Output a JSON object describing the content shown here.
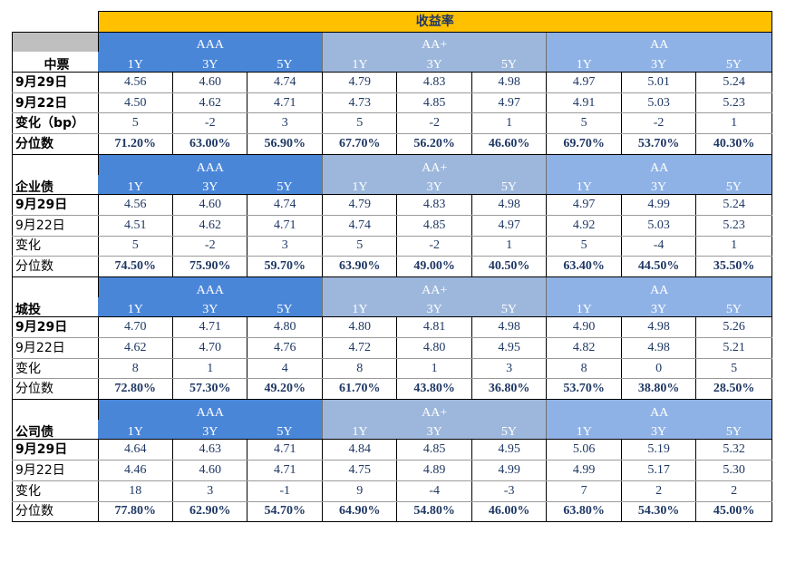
{
  "title": "收益率",
  "sections": [
    {
      "name": "中票",
      "groups": [
        "AAA",
        "AA+",
        "AA"
      ],
      "tenors": [
        "1Y",
        "3Y",
        "5Y",
        "1Y",
        "3Y",
        "5Y",
        "1Y",
        "3Y",
        "5Y"
      ],
      "rows": [
        {
          "label": "9月29日",
          "values": [
            "4.56",
            "4.60",
            "4.74",
            "4.79",
            "4.83",
            "4.98",
            "4.97",
            "5.01",
            "5.24"
          ]
        },
        {
          "label": "9月22日",
          "values": [
            "4.50",
            "4.62",
            "4.71",
            "4.73",
            "4.85",
            "4.97",
            "4.91",
            "5.03",
            "5.23"
          ]
        },
        {
          "label": "变化（bp）",
          "values": [
            "5",
            "-2",
            "3",
            "5",
            "-2",
            "1",
            "5",
            "-2",
            "1"
          ]
        },
        {
          "label": "分位数",
          "values": [
            "71.20%",
            "63.00%",
            "56.90%",
            "67.70%",
            "56.20%",
            "46.60%",
            "69.70%",
            "53.70%",
            "40.30%"
          ]
        }
      ]
    },
    {
      "name": "企业债",
      "groups": [
        "AAA",
        "AA+",
        "AA"
      ],
      "tenors": [
        "1Y",
        "3Y",
        "5Y",
        "1Y",
        "3Y",
        "5Y",
        "1Y",
        "3Y",
        "5Y"
      ],
      "rows": [
        {
          "label": "9月29日",
          "values": [
            "4.56",
            "4.60",
            "4.74",
            "4.79",
            "4.83",
            "4.98",
            "4.97",
            "4.99",
            "5.24"
          ]
        },
        {
          "label": "9月22日",
          "values": [
            "4.51",
            "4.62",
            "4.71",
            "4.74",
            "4.85",
            "4.97",
            "4.92",
            "5.03",
            "5.23"
          ]
        },
        {
          "label": "变化",
          "values": [
            "5",
            "-2",
            "3",
            "5",
            "-2",
            "1",
            "5",
            "-4",
            "1"
          ]
        },
        {
          "label": "分位数",
          "values": [
            "74.50%",
            "75.90%",
            "59.70%",
            "63.90%",
            "49.00%",
            "40.50%",
            "63.40%",
            "44.50%",
            "35.50%"
          ]
        }
      ]
    },
    {
      "name": "城投",
      "groups": [
        "AAA",
        "AA+",
        "AA"
      ],
      "tenors": [
        "1Y",
        "3Y",
        "5Y",
        "1Y",
        "3Y",
        "5Y",
        "1Y",
        "3Y",
        "5Y"
      ],
      "rows": [
        {
          "label": "9月29日",
          "values": [
            "4.70",
            "4.71",
            "4.80",
            "4.80",
            "4.81",
            "4.98",
            "4.90",
            "4.98",
            "5.26"
          ]
        },
        {
          "label": "9月22日",
          "values": [
            "4.62",
            "4.70",
            "4.76",
            "4.72",
            "4.80",
            "4.95",
            "4.82",
            "4.98",
            "5.21"
          ]
        },
        {
          "label": "变化",
          "values": [
            "8",
            "1",
            "4",
            "8",
            "1",
            "3",
            "8",
            "0",
            "5"
          ]
        },
        {
          "label": "分位数",
          "values": [
            "72.80%",
            "57.30%",
            "49.20%",
            "61.70%",
            "43.80%",
            "36.80%",
            "53.70%",
            "38.80%",
            "28.50%"
          ]
        }
      ]
    },
    {
      "name": "公司债",
      "groups": [
        "AAA",
        "AA+",
        "AA"
      ],
      "tenors": [
        "1Y",
        "3Y",
        "5Y",
        "1Y",
        "3Y",
        "5Y",
        "1Y",
        "3Y",
        "5Y"
      ],
      "rows": [
        {
          "label": "9月29日",
          "values": [
            "4.64",
            "4.63",
            "4.71",
            "4.84",
            "4.85",
            "4.95",
            "5.06",
            "5.19",
            "5.32"
          ]
        },
        {
          "label": "9月22日",
          "values": [
            "4.46",
            "4.60",
            "4.71",
            "4.75",
            "4.89",
            "4.99",
            "4.99",
            "5.17",
            "5.30"
          ]
        },
        {
          "label": "变化",
          "values": [
            "18",
            "3",
            "-1",
            "9",
            "-4",
            "-3",
            "7",
            "2",
            "2"
          ]
        },
        {
          "label": "分位数",
          "values": [
            "77.80%",
            "62.90%",
            "54.70%",
            "64.90%",
            "54.80%",
            "46.00%",
            "63.80%",
            "54.30%",
            "45.00%"
          ]
        }
      ]
    }
  ],
  "colors": {
    "title_bg": "#ffc000",
    "aaa_bg": "#4a86d8",
    "aa_plus_bg": "#9db7dc",
    "aa_bg": "#8fb2e6",
    "value_text": "#1f3864",
    "gray_label_bg": "#bfbfbf"
  }
}
